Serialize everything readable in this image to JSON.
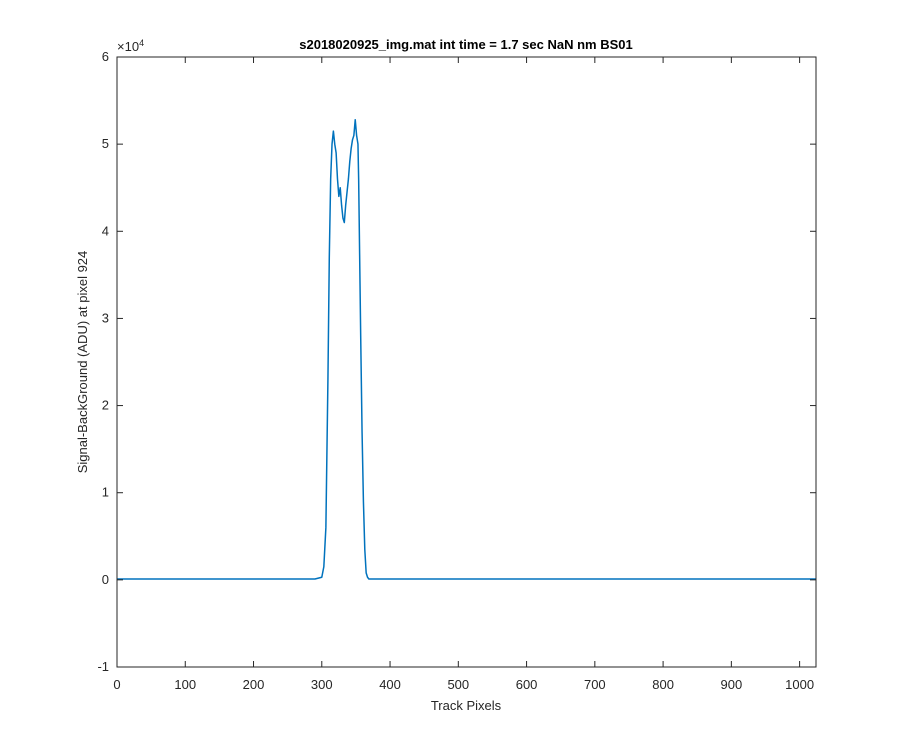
{
  "chart_data": {
    "type": "line",
    "title": "s2018020925_img.mat int time = 1.7 sec  NaN nm BS01",
    "xlabel": "Track Pixels",
    "ylabel": "Signal-BackGround (ADU) at pixel 924",
    "xlim": [
      0,
      1024
    ],
    "ylim": [
      -1,
      6
    ],
    "y_exponent_label": "×10",
    "y_exponent_power": "4",
    "xticks": [
      "0",
      "100",
      "200",
      "300",
      "400",
      "500",
      "600",
      "700",
      "800",
      "900",
      "1000"
    ],
    "xtick_values": [
      0,
      100,
      200,
      300,
      400,
      500,
      600,
      700,
      800,
      900,
      1000
    ],
    "yticks": [
      "-1",
      "0",
      "1",
      "2",
      "3",
      "4",
      "5",
      "6"
    ],
    "ytick_values": [
      -1,
      0,
      1,
      2,
      3,
      4,
      5,
      6
    ],
    "grid": false,
    "line_color": "#0072BD",
    "series": [
      {
        "x": [
          0,
          50,
          100,
          150,
          200,
          250,
          290,
          300,
          303,
          306,
          309,
          311,
          313,
          315,
          317,
          319,
          321,
          323,
          325,
          327,
          329,
          331,
          333,
          335,
          337,
          339,
          341,
          343,
          345,
          347,
          349,
          351,
          353,
          354,
          355,
          357,
          359,
          361,
          363,
          365,
          367,
          369,
          371,
          373,
          376,
          380,
          400,
          450,
          500,
          550,
          600,
          650,
          700,
          750,
          800,
          850,
          900,
          950,
          1000,
          1024
        ],
        "y": [
          0.01,
          0.01,
          0.01,
          0.01,
          0.01,
          0.01,
          0.01,
          0.03,
          0.15,
          0.6,
          2.3,
          3.7,
          4.6,
          5.0,
          5.15,
          5.0,
          4.9,
          4.6,
          4.4,
          4.5,
          4.3,
          4.15,
          4.1,
          4.3,
          4.45,
          4.6,
          4.8,
          4.95,
          5.05,
          5.1,
          5.28,
          5.1,
          5.0,
          4.6,
          4.0,
          2.8,
          1.7,
          0.9,
          0.35,
          0.08,
          0.03,
          0.01,
          0.01,
          0.01,
          0.01,
          0.01,
          0.01,
          0.01,
          0.01,
          0.01,
          0.01,
          0.01,
          0.01,
          0.01,
          0.01,
          0.01,
          0.01,
          0.01,
          0.01,
          0.01
        ]
      }
    ]
  }
}
